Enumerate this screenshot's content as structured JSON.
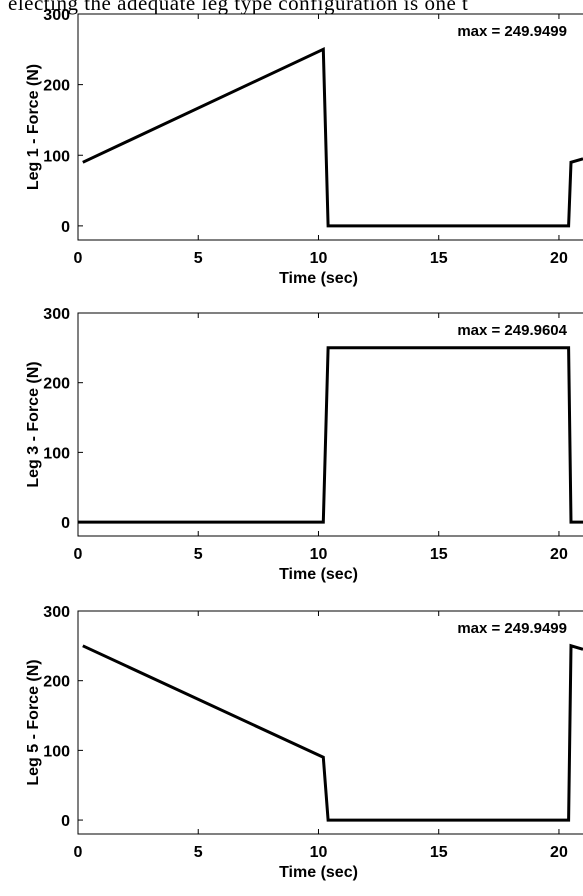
{
  "header_text": "electing the adequate leg type configuration is one t",
  "chart_data": [
    {
      "type": "line",
      "title": "",
      "xlabel": "Time (sec)",
      "ylabel": "Leg 1 - Force (N)",
      "xlim": [
        0,
        21
      ],
      "ylim": [
        -20,
        300
      ],
      "xticks": [
        0,
        5,
        10,
        15,
        20
      ],
      "yticks": [
        0,
        100,
        200,
        300
      ],
      "annotation": "max = 249.9499",
      "series": [
        {
          "color": "#000000",
          "x": [
            0.2,
            10.2,
            10.4,
            20.4,
            20.5,
            21
          ],
          "y": [
            90,
            250,
            0,
            0,
            90,
            95
          ]
        }
      ]
    },
    {
      "type": "line",
      "title": "",
      "xlabel": "Time (sec)",
      "ylabel": "Leg 3 - Force (N)",
      "xlim": [
        0,
        21
      ],
      "ylim": [
        -20,
        300
      ],
      "xticks": [
        0,
        5,
        10,
        15,
        20
      ],
      "yticks": [
        0,
        100,
        200,
        300
      ],
      "annotation": "max = 249.9604",
      "series": [
        {
          "color": "#000000",
          "x": [
            0,
            10.2,
            10.4,
            20.4,
            20.5,
            21
          ],
          "y": [
            0,
            0,
            250,
            250,
            0,
            0
          ]
        }
      ]
    },
    {
      "type": "line",
      "title": "",
      "xlabel": "Time (sec)",
      "ylabel": "Leg 5 - Force (N)",
      "xlim": [
        0,
        21
      ],
      "ylim": [
        -20,
        300
      ],
      "xticks": [
        0,
        5,
        10,
        15,
        20
      ],
      "yticks": [
        0,
        100,
        200,
        300
      ],
      "annotation": "max = 249.9499",
      "series": [
        {
          "color": "#000000",
          "x": [
            0.2,
            10.2,
            10.4,
            20.4,
            20.5,
            21
          ],
          "y": [
            250,
            90,
            0,
            0,
            250,
            245
          ]
        }
      ]
    }
  ]
}
